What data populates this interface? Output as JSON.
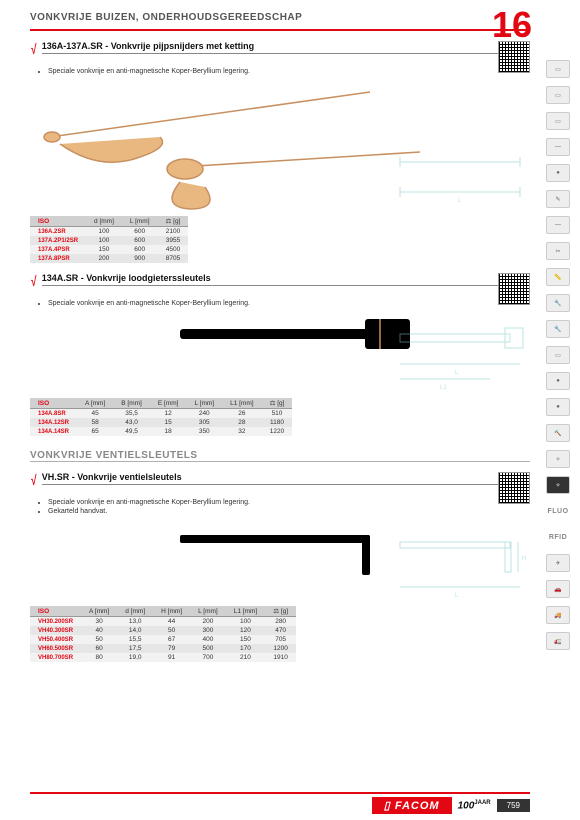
{
  "page": {
    "header_title": "VONKVRIJE BUIZEN, ONDERHOUDSGEREEDSCHAP",
    "chapter_number": "16",
    "footer_brand": "FACOM",
    "footer_years": "100",
    "footer_years_suffix": "JAAR",
    "footer_page": "759"
  },
  "sections": [
    {
      "key": "s1",
      "title": "136A-137A.SR - Vonkvrije pijpsnijders met ketting",
      "bullets": [
        "Speciale vonkvrije en anti-magnetische Koper-Beryllium legering."
      ],
      "table": {
        "columns": [
          "ISO",
          "d [mm]",
          "L [mm]",
          "⚖ [g]"
        ],
        "rows": [
          [
            "136A.2SR",
            "100",
            "600",
            "2100"
          ],
          [
            "137A.2P1/2SR",
            "100",
            "600",
            "3955"
          ],
          [
            "137A.4PSR",
            "150",
            "600",
            "4500"
          ],
          [
            "137A.8PSR",
            "200",
            "900",
            "8705"
          ]
        ]
      }
    },
    {
      "key": "s2",
      "title": "134A.SR - Vonkvrije loodgieterssleutels",
      "bullets": [
        "Speciale vonkvrije en anti-magnetische Koper-Beryllium legering."
      ],
      "table": {
        "columns": [
          "ISO",
          "A [mm]",
          "B [mm]",
          "E [mm]",
          "L [mm]",
          "L1 [mm]",
          "⚖ [g]"
        ],
        "rows": [
          [
            "134A.8SR",
            "45",
            "35,5",
            "12",
            "240",
            "26",
            "510"
          ],
          [
            "134A.12SR",
            "58",
            "43,0",
            "15",
            "305",
            "28",
            "1180"
          ],
          [
            "134A.14SR",
            "65",
            "49,5",
            "18",
            "350",
            "32",
            "1220"
          ]
        ]
      }
    }
  ],
  "subheading": "VONKVRIJE VENTIELSLEUTELS",
  "section3": {
    "title": "VH.SR - Vonkvrije ventielsleutels",
    "bullets": [
      "Speciale vonkvrije en anti-magnetische Koper-Beryllium legering.",
      "Gekarteld handvat."
    ],
    "table": {
      "columns": [
        "ISO",
        "A [mm]",
        "d [mm]",
        "H [mm]",
        "L [mm]",
        "L1 [mm]",
        "⚖ [g]"
      ],
      "rows": [
        [
          "VH30.200SR",
          "30",
          "13,0",
          "44",
          "200",
          "100",
          "280"
        ],
        [
          "VH40.300SR",
          "40",
          "14,0",
          "50",
          "300",
          "120",
          "470"
        ],
        [
          "VH50.400SR",
          "50",
          "15,5",
          "67",
          "400",
          "150",
          "705"
        ],
        [
          "VH60.500SR",
          "60",
          "17,5",
          "79",
          "500",
          "170",
          "1200"
        ],
        [
          "VH80.700SR",
          "80",
          "19,0",
          "91",
          "700",
          "210",
          "1910"
        ]
      ]
    }
  },
  "icons": [
    "▭",
    "▭",
    "▭",
    "—",
    "●",
    "✎",
    "—",
    "✂",
    "📏",
    "🔧",
    "🔧",
    "▭",
    "●",
    "●",
    "🔨",
    "✧",
    "✧",
    "FLUO",
    "RFID",
    "✈",
    "🚗",
    "🚚",
    "🚛"
  ],
  "colors": {
    "brand_red": "#e30613",
    "table_header_bg": "#d0d0d0",
    "row_odd": "#f2f2f2",
    "row_even": "#e6e6e6",
    "diagram_stroke": "#7ec8c8",
    "tool_fill": "#e8b880"
  }
}
